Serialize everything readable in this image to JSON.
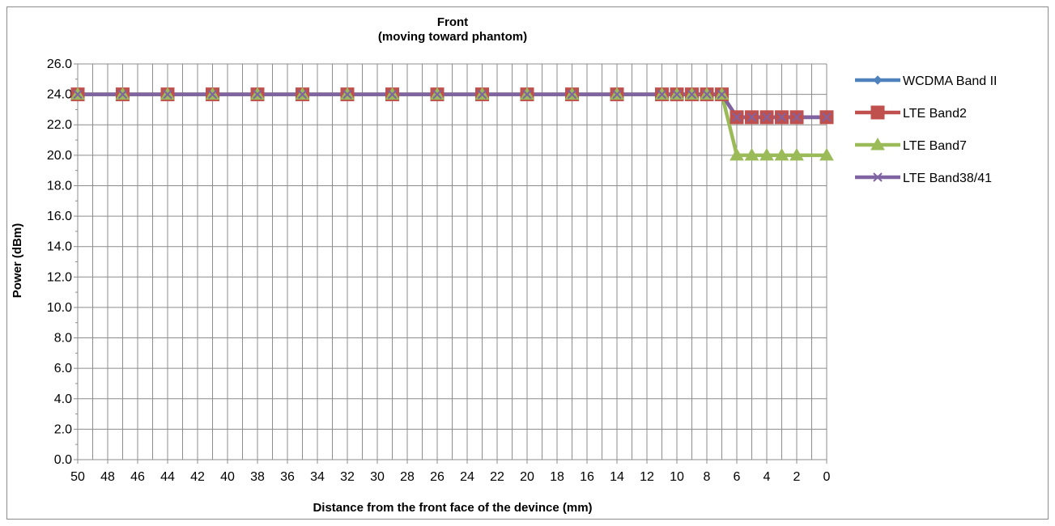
{
  "chart_data": {
    "type": "line",
    "title": "Front",
    "subtitle": "(moving toward phantom)",
    "xlabel": "Distance from the front face of the devince (mm)",
    "ylabel": "Power (dBm)",
    "ylim": [
      0,
      26
    ],
    "xlim": [
      50,
      0
    ],
    "x_reversed": true,
    "y_ticks": [
      "0.0",
      "2.0",
      "4.0",
      "6.0",
      "8.0",
      "10.0",
      "12.0",
      "14.0",
      "16.0",
      "18.0",
      "20.0",
      "22.0",
      "24.0",
      "26.0"
    ],
    "x_ticks": [
      "50",
      "48",
      "46",
      "44",
      "42",
      "40",
      "38",
      "36",
      "34",
      "32",
      "30",
      "28",
      "26",
      "24",
      "22",
      "20",
      "18",
      "16",
      "14",
      "12",
      "10",
      "8",
      "6",
      "4",
      "2",
      "0"
    ],
    "grid": true,
    "legend_position": "right",
    "series": [
      {
        "name": "WCDMA Band II",
        "color": "#4f81bd",
        "marker": "diamond",
        "x": [
          50,
          47,
          44,
          41,
          38,
          35,
          32,
          29,
          26,
          23,
          20,
          17,
          14,
          11,
          10,
          9,
          8,
          7,
          6,
          5,
          4,
          3,
          2,
          0
        ],
        "values": [
          24,
          24,
          24,
          24,
          24,
          24,
          24,
          24,
          24,
          24,
          24,
          24,
          24,
          24,
          24,
          24,
          24,
          24,
          22.5,
          22.5,
          22.5,
          22.5,
          22.5,
          22.5
        ]
      },
      {
        "name": "LTE Band2",
        "color": "#c0504d",
        "marker": "square",
        "x": [
          50,
          47,
          44,
          41,
          38,
          35,
          32,
          29,
          26,
          23,
          20,
          17,
          14,
          11,
          10,
          9,
          8,
          7,
          6,
          5,
          4,
          3,
          2,
          0
        ],
        "values": [
          24,
          24,
          24,
          24,
          24,
          24,
          24,
          24,
          24,
          24,
          24,
          24,
          24,
          24,
          24,
          24,
          24,
          24,
          22.5,
          22.5,
          22.5,
          22.5,
          22.5,
          22.5
        ]
      },
      {
        "name": "LTE Band7",
        "color": "#9bbb59",
        "marker": "triangle",
        "x": [
          50,
          47,
          44,
          41,
          38,
          35,
          32,
          29,
          26,
          23,
          20,
          17,
          14,
          11,
          10,
          9,
          8,
          7,
          6,
          5,
          4,
          3,
          2,
          0
        ],
        "values": [
          24,
          24,
          24,
          24,
          24,
          24,
          24,
          24,
          24,
          24,
          24,
          24,
          24,
          24,
          24,
          24,
          24,
          24,
          20,
          20,
          20,
          20,
          20,
          20
        ]
      },
      {
        "name": "LTE Band38/41",
        "color": "#8064a2",
        "marker": "x",
        "x": [
          50,
          47,
          44,
          41,
          38,
          35,
          32,
          29,
          26,
          23,
          20,
          17,
          14,
          11,
          10,
          9,
          8,
          7,
          6,
          5,
          4,
          3,
          2,
          0
        ],
        "values": [
          24,
          24,
          24,
          24,
          24,
          24,
          24,
          24,
          24,
          24,
          24,
          24,
          24,
          24,
          24,
          24,
          24,
          24,
          22.5,
          22.5,
          22.5,
          22.5,
          22.5,
          22.5
        ]
      }
    ]
  }
}
